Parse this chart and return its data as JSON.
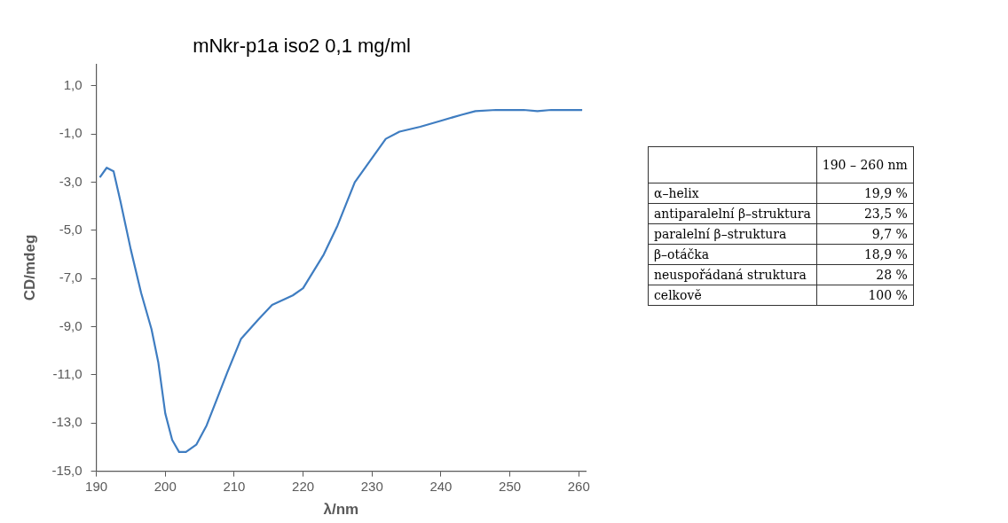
{
  "chart_data": [
    {
      "type": "line",
      "title": "mNkr-p1a iso2 0,1 mg/ml",
      "xlabel": "λ/nm",
      "ylabel": "CD/mdeg",
      "color": "#3f7dc1",
      "marker": "none",
      "grid": false,
      "x": [
        190.5,
        191.5,
        192.5,
        193.5,
        195,
        196.5,
        198,
        199,
        200,
        201,
        202,
        203,
        204.5,
        206,
        207.5,
        209,
        211,
        213.5,
        215.5,
        218.5,
        220,
        223,
        225,
        227.5,
        230,
        232,
        234,
        237,
        240,
        243,
        245,
        248,
        252,
        254,
        256,
        260.5
      ],
      "values": [
        -2.8,
        -2.4,
        -2.55,
        -3.8,
        -5.8,
        -7.6,
        -9.1,
        -10.5,
        -12.6,
        -13.7,
        -14.2,
        -14.2,
        -13.9,
        -13.1,
        -12.0,
        -10.9,
        -9.5,
        -8.7,
        -8.1,
        -7.7,
        -7.4,
        -6.0,
        -4.8,
        -3.0,
        -2.0,
        -1.2,
        -0.9,
        -0.7,
        -0.45,
        -0.2,
        -0.05,
        0.0,
        0.0,
        -0.05,
        0.0,
        0.0
      ],
      "xlim": [
        190,
        261
      ],
      "xticks": [
        190,
        200,
        210,
        220,
        230,
        240,
        250,
        260
      ],
      "ylim": [
        -15,
        1.9
      ],
      "yticks": [
        {
          "value": 1,
          "label": "1,0"
        },
        {
          "value": -1,
          "label": "-1,0"
        },
        {
          "value": -3,
          "label": "-3,0"
        },
        {
          "value": -5,
          "label": "-5,0"
        },
        {
          "value": -7,
          "label": "-7,0"
        },
        {
          "value": -9,
          "label": "-9,0"
        },
        {
          "value": -11,
          "label": "-11,0"
        },
        {
          "value": -13,
          "label": "-13,0"
        },
        {
          "value": -15,
          "label": "-15,0"
        }
      ]
    },
    {
      "type": "other",
      "categories": [
        "190 – 260 nm"
      ],
      "y_categories": [
        "α–helix",
        "antiparalelní β–struktura",
        "paralelní β–struktura",
        "β–otáčka",
        "neuspořádaná struktura",
        "celkově"
      ],
      "cell_labels": [
        [
          "19,9 %"
        ],
        [
          "23,5 %"
        ],
        [
          "9,7 %"
        ],
        [
          "18,9 %"
        ],
        [
          "28 %"
        ],
        [
          "100 %"
        ]
      ]
    }
  ]
}
